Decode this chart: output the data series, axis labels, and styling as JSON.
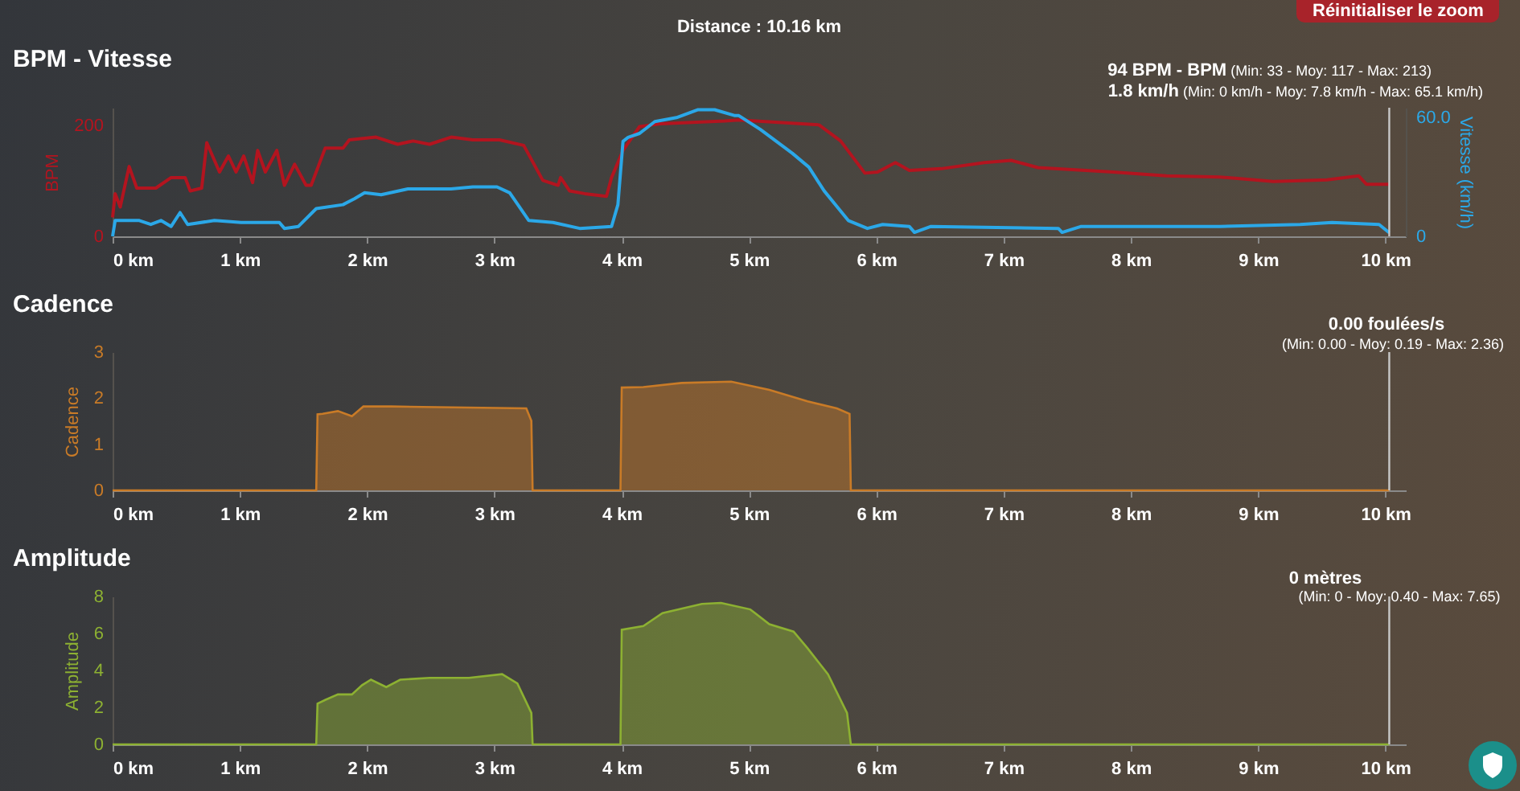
{
  "chart_data": [
    {
      "type": "line",
      "title": "BPM - Vitesse",
      "ylabel": "BPM",
      "y2label": "Vitesse (km/h)",
      "annotations": [
        "Distance : 10.16 km",
        "Réinitialiser le zoom",
        "94 BPM - BPM (Min: 33 - Moy: 117 - Max: 213)",
        "1.8 km/h (Min: 0 km/h - Moy: 7.8 km/h - Max: 65.1 km/h)"
      ],
      "xlim": [
        0,
        10.16
      ],
      "xticks": [
        {
          "value": 0,
          "label": "0 km"
        },
        {
          "value": 1,
          "label": "1 km"
        },
        {
          "value": 2,
          "label": "2 km"
        },
        {
          "value": 3,
          "label": "3 km"
        },
        {
          "value": 4,
          "label": "4 km"
        },
        {
          "value": 5,
          "label": "5 km"
        },
        {
          "value": 6,
          "label": "6 km"
        },
        {
          "value": 7,
          "label": "7 km"
        },
        {
          "value": 8,
          "label": "8 km"
        },
        {
          "value": 9,
          "label": "9 km"
        },
        {
          "value": 10,
          "label": "10 km"
        }
      ],
      "ylim": [
        0,
        232
      ],
      "yticks": [
        0,
        200
      ],
      "y2lim": [
        0,
        65
      ],
      "y2ticks": [
        0,
        {
          "value": 60,
          "label": "60.0"
        }
      ],
      "grid": false,
      "ref_lines": [
        {
          "axis": "x",
          "value": 10.03,
          "color": "#c8c8c8"
        }
      ],
      "series": [
        {
          "color": "#b3141f",
          "x": [
            0,
            0.02,
            0.06,
            0.13,
            0.19,
            0.34,
            0.46,
            0.57,
            0.61,
            0.7,
            0.74,
            0.84,
            0.91,
            0.97,
            1.03,
            1.1,
            1.14,
            1.2,
            1.29,
            1.35,
            1.43,
            1.52,
            1.56,
            1.67,
            1.81,
            1.86,
            2.07,
            2.24,
            2.36,
            2.49,
            2.66,
            2.83,
            3.04,
            3.23,
            3.38,
            3.5,
            3.52,
            3.59,
            3.71,
            3.88,
            3.92,
            4.01,
            4.14,
            4.3,
            4.81,
            4.92,
            5.55,
            5.72,
            5.91,
            6.01,
            6.15,
            6.26,
            6.51,
            6.85,
            7.06,
            7.27,
            7.86,
            8.28,
            8.7,
            9.12,
            9.54,
            9.79,
            9.85,
            10.03
          ],
          "values": [
            34,
            77,
            53,
            126,
            87,
            87,
            106,
            106,
            82,
            87,
            169,
            116,
            145,
            116,
            145,
            97,
            155,
            116,
            155,
            92,
            130,
            92,
            92,
            159,
            159,
            174,
            179,
            166,
            172,
            166,
            179,
            174,
            174,
            164,
            101,
            92,
            106,
            82,
            77,
            72,
            106,
            155,
            198,
            203,
            208,
            210,
            201,
            172,
            114,
            116,
            133,
            119,
            122,
            133,
            137,
            124,
            116,
            109,
            107,
            99,
            102,
            109,
            94,
            94
          ]
        },
        {
          "color": "#2ba8e8",
          "axis": "y2",
          "x": [
            0,
            0.02,
            0.21,
            0.3,
            0.38,
            0.46,
            0.53,
            0.59,
            0.8,
            1.01,
            1.31,
            1.35,
            1.46,
            1.6,
            1.81,
            1.9,
            1.98,
            2.11,
            2.32,
            2.49,
            2.66,
            2.83,
            3.02,
            3.12,
            3.27,
            3.46,
            3.67,
            3.92,
            3.97,
            4.01,
            4.05,
            4.14,
            4.26,
            4.43,
            4.6,
            4.73,
            4.89,
            4.92,
            5.09,
            5.34,
            5.47,
            5.59,
            5.78,
            5.93,
            6.05,
            6.26,
            6.3,
            6.43,
            7.43,
            7.46,
            7.61,
            8.7,
            9.33,
            9.58,
            9.95,
            10.03
          ],
          "values": [
            0,
            8,
            8,
            6,
            8,
            5,
            12,
            6,
            8,
            7,
            7,
            4,
            5,
            14,
            16,
            19,
            22,
            21,
            24,
            24,
            24,
            25,
            25,
            22,
            8,
            7,
            4,
            5,
            16,
            48,
            50,
            52,
            58,
            60,
            64,
            64,
            61,
            61,
            54,
            42,
            35,
            23,
            8,
            4,
            6,
            5,
            2,
            5,
            4,
            2,
            5,
            5,
            6,
            7,
            6,
            1.8
          ]
        }
      ]
    },
    {
      "type": "area",
      "title": "Cadence",
      "ylabel": "Cadence",
      "annotations": [
        "0.00 foulées/s",
        "(Min: 0.00 - Moy: 0.19 - Max: 2.36)"
      ],
      "xlim": [
        0,
        10.16
      ],
      "xticks": [
        {
          "value": 0,
          "label": "0 km"
        },
        {
          "value": 1,
          "label": "1 km"
        },
        {
          "value": 2,
          "label": "2 km"
        },
        {
          "value": 3,
          "label": "3 km"
        },
        {
          "value": 4,
          "label": "4 km"
        },
        {
          "value": 5,
          "label": "5 km"
        },
        {
          "value": 6,
          "label": "6 km"
        },
        {
          "value": 7,
          "label": "7 km"
        },
        {
          "value": 8,
          "label": "8 km"
        },
        {
          "value": 9,
          "label": "9 km"
        },
        {
          "value": 10,
          "label": "10 km"
        }
      ],
      "ylim": [
        0,
        3
      ],
      "yticks": [
        0,
        1,
        2,
        3
      ],
      "grid": false,
      "ref_lines": [
        {
          "axis": "x",
          "value": 10.03,
          "color": "#c8c8c8"
        }
      ],
      "series": [
        {
          "color": "#c97b27",
          "x": [
            0,
            1.6,
            1.61,
            1.65,
            1.77,
            1.88,
            1.97,
            2.19,
            3.25,
            3.29,
            3.3,
            3.99,
            4.0,
            4.17,
            4.47,
            4.86,
            5.16,
            5.46,
            5.69,
            5.79,
            5.8,
            10.03
          ],
          "values": [
            0,
            0,
            1.65,
            1.66,
            1.72,
            1.61,
            1.82,
            1.82,
            1.78,
            1.51,
            0,
            0,
            2.23,
            2.24,
            2.33,
            2.36,
            2.18,
            1.93,
            1.78,
            1.66,
            0,
            0
          ]
        }
      ]
    },
    {
      "type": "area",
      "title": "Amplitude",
      "ylabel": "Amplitude",
      "annotations": [
        "0 mètres",
        "(Min: 0 - Moy: 0.40 - Max: 7.65)"
      ],
      "xlim": [
        0,
        10.16
      ],
      "xticks": [
        {
          "value": 0,
          "label": "0 km"
        },
        {
          "value": 1,
          "label": "1 km"
        },
        {
          "value": 2,
          "label": "2 km"
        },
        {
          "value": 3,
          "label": "3 km"
        },
        {
          "value": 4,
          "label": "4 km"
        },
        {
          "value": 5,
          "label": "5 km"
        },
        {
          "value": 6,
          "label": "6 km"
        },
        {
          "value": 7,
          "label": "7 km"
        },
        {
          "value": 8,
          "label": "8 km"
        },
        {
          "value": 9,
          "label": "9 km"
        },
        {
          "value": 10,
          "label": "10 km"
        }
      ],
      "ylim": [
        0,
        8
      ],
      "yticks": [
        0,
        2,
        4,
        6,
        8
      ],
      "grid": false,
      "ref_lines": [
        {
          "axis": "x",
          "value": 10.03,
          "color": "#c8c8c8"
        }
      ],
      "series": [
        {
          "color": "#8db132",
          "x": [
            0,
            1.6,
            1.61,
            1.67,
            1.77,
            1.88,
            1.96,
            2.03,
            2.15,
            2.26,
            2.49,
            2.8,
            3.06,
            3.18,
            3.29,
            3.3,
            3.99,
            4.0,
            4.17,
            4.32,
            4.63,
            4.78,
            5.01,
            5.16,
            5.35,
            5.46,
            5.62,
            5.77,
            5.8,
            10.03
          ],
          "values": [
            0,
            0,
            2.2,
            2.4,
            2.7,
            2.7,
            3.2,
            3.5,
            3.1,
            3.5,
            3.6,
            3.6,
            3.8,
            3.3,
            1.7,
            0,
            0,
            6.2,
            6.4,
            7.1,
            7.6,
            7.65,
            7.3,
            6.5,
            6.1,
            5.2,
            3.8,
            1.7,
            0,
            0
          ]
        }
      ]
    }
  ]
}
